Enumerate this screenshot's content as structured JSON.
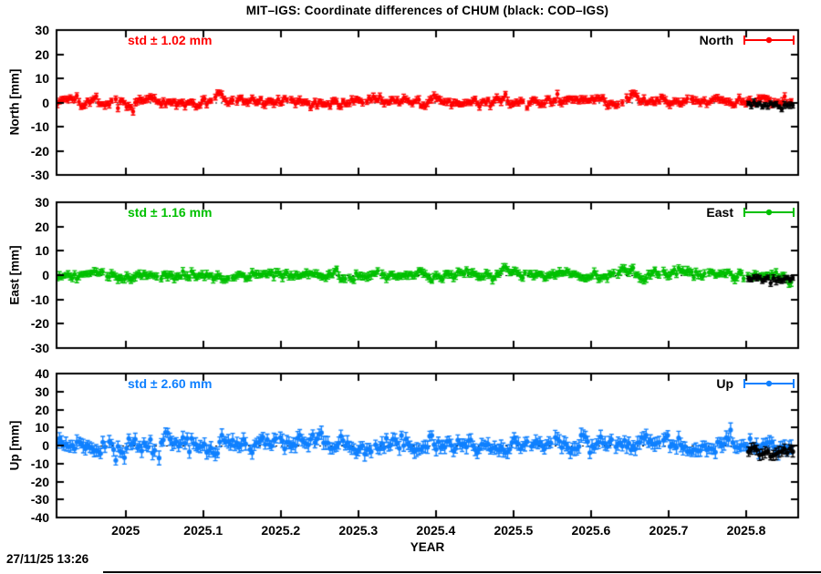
{
  "footer": {
    "timestamp": "27/11/25 13:26"
  },
  "chart_data": {
    "type": "scatter",
    "title": "MIT–IGS: Coordinate differences of CHUM (black: COD–IGS)",
    "subtitle": "",
    "grid": false,
    "zero_line": "dotted-black",
    "legend_position": "top-right-inside",
    "x_axis": {
      "label": "YEAR",
      "min": 2024.911,
      "max": 2025.867,
      "tick_values": [
        2025,
        2025.1,
        2025.2,
        2025.3,
        2025.4,
        2025.5,
        2025.6,
        2025.7,
        2025.8
      ],
      "tick_labels": [
        "2025",
        "2025.1",
        "2025.2",
        "2025.3",
        "2025.4",
        "2025.5",
        "2025.6",
        "2025.7",
        "2025.8"
      ]
    },
    "panels": [
      {
        "name": "north",
        "ylabel": "North [mm]",
        "ylim": [
          -30,
          30
        ],
        "yticks": [
          30,
          20,
          10,
          0,
          -10,
          -20,
          -30
        ],
        "std_mm": 1.02,
        "std_label": "std ± 1.02 mm",
        "legend_label": "North",
        "color": "#ff0000",
        "marker": "filled-circle-with-errorbar",
        "series": [
          {
            "name": "MIT-IGS",
            "color": "#ff0000",
            "x_start": 2024.912,
            "x_end": 2025.858,
            "points": 340,
            "mean_mm": 0.3,
            "std_mm": 1.02,
            "err_mm": 1.2,
            "seed": 11
          },
          {
            "name": "COD-IGS",
            "color": "#000000",
            "x_start": 2025.803,
            "x_end": 2025.86,
            "points": 17,
            "mean_mm": -1.2,
            "std_mm": 0.7,
            "err_mm": 1.1,
            "seed": 12
          }
        ]
      },
      {
        "name": "east",
        "ylabel": "East [mm]",
        "ylim": [
          -30,
          30
        ],
        "yticks": [
          30,
          20,
          10,
          0,
          -10,
          -20,
          -30
        ],
        "std_mm": 1.16,
        "std_label": "std ± 1.16 mm",
        "legend_label": "East",
        "color": "#00c000",
        "marker": "filled-circle-with-errorbar",
        "series": [
          {
            "name": "MIT-IGS",
            "color": "#00c000",
            "x_start": 2024.912,
            "x_end": 2025.858,
            "points": 340,
            "mean_mm": 0.2,
            "std_mm": 1.16,
            "err_mm": 1.3,
            "seed": 21
          },
          {
            "name": "COD-IGS",
            "color": "#000000",
            "x_start": 2025.803,
            "x_end": 2025.86,
            "points": 17,
            "mean_mm": -1.6,
            "std_mm": 0.8,
            "err_mm": 1.2,
            "seed": 22
          }
        ]
      },
      {
        "name": "up",
        "ylabel": "Up [mm]",
        "ylim": [
          -40,
          40
        ],
        "yticks": [
          40,
          30,
          20,
          10,
          0,
          -10,
          -20,
          -30,
          -40
        ],
        "std_mm": 2.6,
        "std_label": "std ± 2.60 mm",
        "legend_label": "Up",
        "color": "#0f80ff",
        "marker": "filled-circle-with-errorbar",
        "series": [
          {
            "name": "MIT-IGS",
            "color": "#0f80ff",
            "x_start": 2024.912,
            "x_end": 2025.858,
            "points": 340,
            "mean_mm": 0.5,
            "std_mm": 2.6,
            "err_mm": 3.0,
            "seed": 31
          },
          {
            "name": "COD-IGS",
            "color": "#000000",
            "x_start": 2025.803,
            "x_end": 2025.86,
            "points": 17,
            "mean_mm": -4.0,
            "std_mm": 1.8,
            "err_mm": 2.5,
            "seed": 32
          }
        ]
      }
    ]
  }
}
